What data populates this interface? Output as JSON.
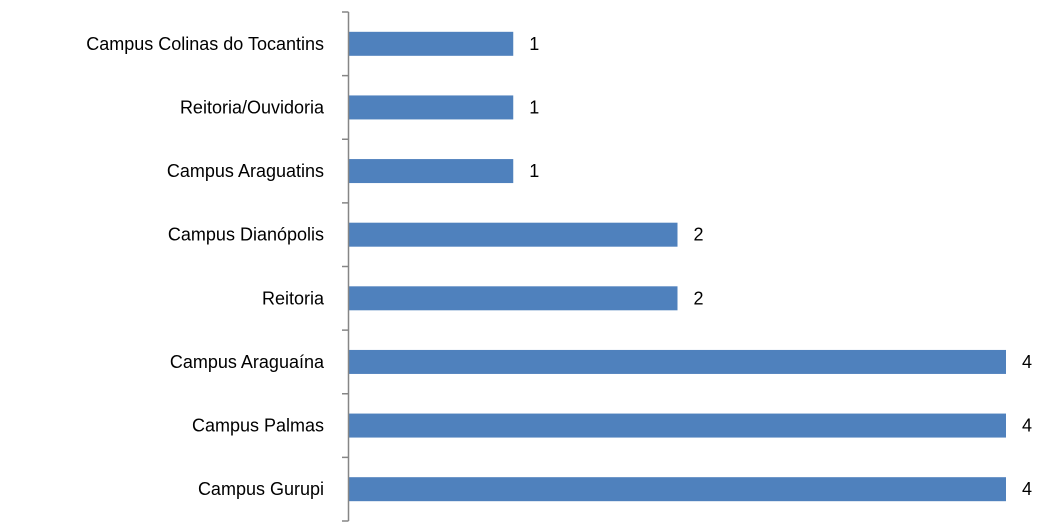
{
  "chart_data": {
    "type": "bar",
    "orientation": "horizontal",
    "title": "",
    "xlabel": "",
    "ylabel": "",
    "categories": [
      "Campus Colinas do Tocantins",
      "Reitoria/Ouvidoria",
      "Campus Araguatins",
      "Campus Dianópolis",
      "Reitoria",
      "Campus Araguaína",
      "Campus Palmas",
      "Campus Gurupi"
    ],
    "values": [
      1,
      1,
      1,
      2,
      2,
      4,
      4,
      4
    ],
    "value_labels": [
      "1",
      "1",
      "1",
      "2",
      "2",
      "4",
      "4",
      "4"
    ],
    "xlim": [
      0,
      4
    ],
    "grid": false,
    "legend": "none",
    "bar_color": "#4F81BD",
    "axis_color": "#868686"
  }
}
